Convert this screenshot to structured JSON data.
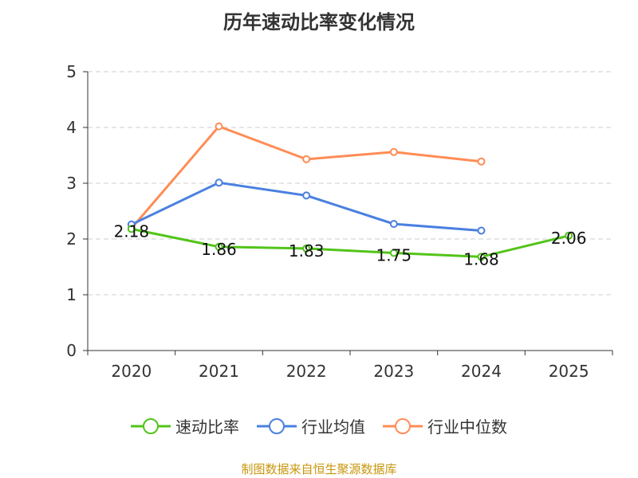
{
  "chart_data": {
    "type": "line",
    "title": "历年速动比率变化情况",
    "categories": [
      "2020",
      "2021",
      "2022",
      "2023",
      "2024",
      "2025"
    ],
    "ylim": [
      0,
      5
    ],
    "yticks": [
      0,
      1,
      2,
      3,
      4,
      5
    ],
    "grid": true,
    "legend_position": "bottom",
    "series": [
      {
        "name": "速动比率",
        "color": "#52c41a",
        "values": [
          2.18,
          1.86,
          1.83,
          1.75,
          1.68,
          2.06
        ],
        "labels": [
          "2.18",
          "1.86",
          "1.83",
          "1.75",
          "1.68",
          "2.06"
        ]
      },
      {
        "name": "行业均值",
        "color": "#4a80e0",
        "values": [
          2.26,
          3.01,
          2.78,
          2.27,
          2.15,
          null
        ]
      },
      {
        "name": "行业中位数",
        "color": "#ff8c55",
        "values": [
          2.19,
          4.02,
          3.43,
          3.56,
          3.39,
          null
        ]
      }
    ]
  },
  "source": "制图数据来自恒生聚源数据库"
}
